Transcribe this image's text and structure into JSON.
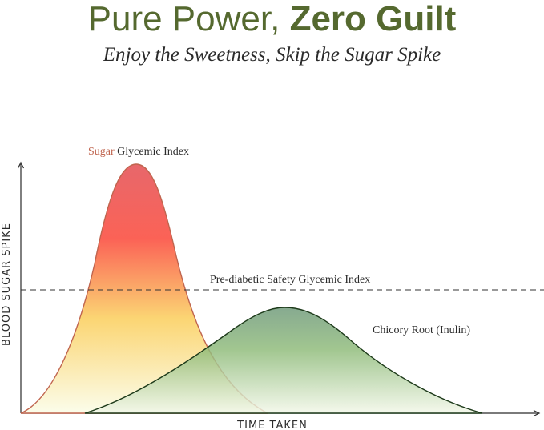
{
  "header": {
    "title_light": "Pure Power,",
    "title_bold": "Zero Guilt",
    "subtitle": "Enjoy the Sweetness, Skip the Sugar Spike"
  },
  "chart_data": {
    "type": "area",
    "ylabel": "BLOOD SUGAR SPIKE",
    "xlabel": "TIME TAKEN",
    "annotations": {
      "sugar_prefix": "Sugar",
      "sugar_suffix": " Glycemic Index",
      "threshold": "Pre-diabetic Safety Glycemic Index",
      "chicory": "Chicory Root (Inulin)"
    },
    "series": [
      {
        "key": "sugar",
        "color_top": "#e85a5a",
        "color_bottom": "#fbfde9",
        "stroke": "#c0654f",
        "start": 0.0,
        "peak_x": 0.22,
        "peak_y": 1.0,
        "end": 0.47
      },
      {
        "key": "chicory",
        "color_top": "#6a9a78",
        "color_bottom": "#f0f6e6",
        "stroke": "#1d3a1a",
        "start": 0.12,
        "peak_x": 0.5,
        "peak_y": 0.42,
        "end": 0.88
      }
    ],
    "threshold_y": 0.5,
    "colors": {
      "title": "#55692f",
      "sugar_word": "#c0654f",
      "text": "#2b2b2b"
    }
  }
}
